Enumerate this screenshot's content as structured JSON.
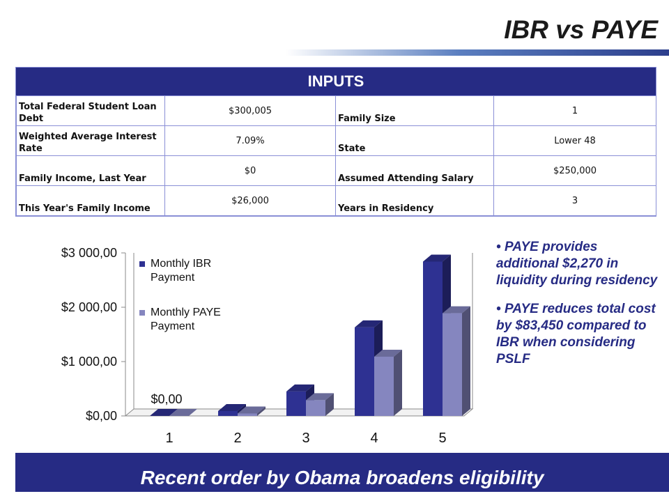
{
  "header": {
    "title": "IBR vs PAYE"
  },
  "inputs": {
    "heading": "INPUTS",
    "rows": [
      {
        "label_left": "Total Federal Student Loan Debt",
        "value_left": "$300,005",
        "label_right": "Family Size",
        "value_right": "1"
      },
      {
        "label_left": "Weighted Average Interest Rate",
        "value_left": "7.09%",
        "label_right": "State",
        "value_right": "Lower 48"
      },
      {
        "label_left": "Family Income, Last Year",
        "value_left": "$0",
        "label_right": "Assumed Attending Salary",
        "value_right": "$250,000"
      },
      {
        "label_left": "This Year's Family Income",
        "value_left": "$26,000",
        "label_right": "Years in Residency",
        "value_right": "3"
      }
    ]
  },
  "notes": [
    "PAYE provides additional $2,270 in liquidity during residency",
    "PAYE reduces total cost by $83,450 compared to IBR when considering PSLF"
  ],
  "footer": {
    "text": "Recent order by Obama broadens eligibility"
  },
  "colors": {
    "ibr": "#2e3192",
    "paye": "#8586bf",
    "banner": "#262b84"
  },
  "chart_data": {
    "type": "bar",
    "categories": [
      "1",
      "2",
      "3",
      "4",
      "5"
    ],
    "series": [
      {
        "name": "Monthly IBR Payment",
        "values": [
          0,
          90,
          450,
          1630,
          2840
        ]
      },
      {
        "name": "Monthly PAYE Payment",
        "values": [
          0,
          45,
          290,
          1090,
          1890
        ]
      }
    ],
    "ylim": [
      0,
      3000
    ],
    "yticks": [
      {
        "value": 0,
        "label": "$0,00"
      },
      {
        "value": 1000,
        "label": "$1 000,00"
      },
      {
        "value": 2000,
        "label": "$2 000,00"
      },
      {
        "value": 3000,
        "label": "$3 000,00"
      }
    ],
    "data_labels": [
      {
        "category": "1",
        "series": "Monthly IBR Payment",
        "text": "$0,00"
      }
    ],
    "legend": "top-left",
    "gridlines": false
  }
}
